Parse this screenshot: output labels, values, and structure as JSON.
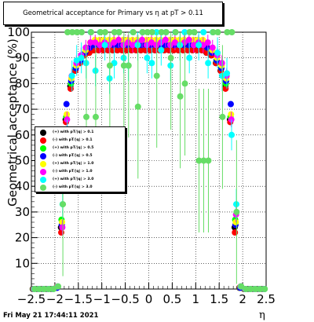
{
  "title": "Geometrical acceptance for Primary vs  η at pT > 0.11",
  "footer": "Fri May 21 17:44:11 2021",
  "chart_data": {
    "type": "scatter",
    "title": "Geometrical acceptance for Primary vs  η at pT > 0.11",
    "xlabel": "η",
    "ylabel": "Geometrical acceptance (%)",
    "xlim": [
      -2.5,
      2.5
    ],
    "ylim": [
      0,
      100
    ],
    "xticks": [
      "−2.5",
      "−2",
      "−1.5",
      "−1",
      "−0.5",
      "0",
      "0.5",
      "1",
      "1.5",
      "2",
      "2.5"
    ],
    "yticks": [
      "10",
      "20",
      "30",
      "40",
      "50",
      "60",
      "70",
      "80",
      "90",
      "100"
    ],
    "grid": true,
    "legend_position": "left-middle",
    "x": [
      -2.45,
      -2.35,
      -2.25,
      -2.15,
      -2.05,
      -1.95,
      -1.85,
      -1.75,
      -1.65,
      -1.55,
      -1.45,
      -1.35,
      -1.25,
      -1.15,
      -1.05,
      -0.95,
      -0.85,
      -0.75,
      -0.65,
      -0.55,
      -0.45,
      -0.35,
      -0.25,
      -0.15,
      -0.05,
      0.05,
      0.15,
      0.25,
      0.35,
      0.45,
      0.55,
      0.65,
      0.75,
      0.85,
      0.95,
      1.05,
      1.15,
      1.25,
      1.35,
      1.45,
      1.55,
      1.65,
      1.75,
      1.85,
      1.95,
      2.05,
      2.15,
      2.25,
      2.35,
      2.45
    ],
    "series": [
      {
        "name": "(+) with pT/|q| > 0.1",
        "color": "#000000",
        "values": [
          0,
          0,
          0,
          0,
          0,
          0,
          0,
          0,
          0,
          0,
          0,
          0,
          0,
          0,
          0,
          0,
          0,
          0,
          0,
          0,
          0,
          0,
          0,
          0,
          0,
          0,
          0,
          0,
          0,
          0,
          0,
          0,
          0,
          0,
          0,
          0,
          0,
          0,
          0,
          0,
          0,
          0,
          0,
          0,
          0,
          0,
          0,
          0,
          0,
          0
        ],
        "shown": [
          0,
          0,
          0,
          0,
          0,
          0.5,
          24,
          66,
          79,
          85,
          88,
          91,
          92,
          93,
          93,
          93,
          93,
          93,
          93,
          93,
          93,
          93,
          93,
          93,
          93,
          93,
          93,
          93,
          93,
          93,
          93,
          93,
          93,
          93,
          93,
          93,
          93,
          92,
          91,
          88,
          85,
          79,
          66,
          24,
          0.5,
          0,
          0,
          0,
          0,
          0
        ]
      },
      {
        "name": "(-) with pT/|q| > 0.1",
        "color": "#ff0000",
        "shown": [
          0,
          0,
          0,
          0,
          0,
          0.5,
          22,
          65,
          78,
          85,
          88,
          91,
          92,
          93,
          93,
          93,
          93,
          93,
          93,
          93,
          93,
          93,
          93,
          93,
          93,
          93,
          93,
          93,
          93,
          93,
          93,
          93,
          93,
          93,
          93,
          93,
          93,
          92,
          91,
          88,
          85,
          78,
          65,
          22,
          0.5,
          0,
          0,
          0,
          0,
          0
        ]
      },
      {
        "name": "(+) with pT/|q| > 0.5",
        "color": "#00ff00",
        "shown": [
          0,
          0,
          0,
          0,
          0,
          0.5,
          27,
          67,
          80,
          86,
          89,
          92,
          94,
          95,
          95,
          95,
          95,
          95,
          95,
          95,
          95,
          95,
          95,
          95,
          95,
          95,
          95,
          95,
          95,
          95,
          95,
          95,
          95,
          95,
          95,
          95,
          95,
          94,
          92,
          89,
          86,
          80,
          67,
          27,
          0.5,
          0,
          0,
          0,
          0,
          0
        ]
      },
      {
        "name": "(-) with pT/|q| > 0.5",
        "color": "#0000ff",
        "shown": [
          0,
          0,
          0,
          0,
          0,
          0.5,
          25,
          72,
          81,
          86,
          89,
          92,
          94,
          95,
          95,
          95,
          95,
          95,
          95,
          95,
          95,
          95,
          95,
          95,
          95,
          95,
          95,
          95,
          95,
          95,
          95,
          95,
          95,
          95,
          95,
          95,
          95,
          94,
          92,
          89,
          86,
          81,
          72,
          25,
          0.5,
          0,
          0,
          0,
          0,
          0
        ]
      },
      {
        "name": "(+) with pT/|q| > 1.0",
        "color": "#ffff00",
        "shown": [
          0,
          0,
          0,
          0,
          0,
          1,
          26,
          68,
          82,
          87,
          90,
          93,
          96,
          97,
          97,
          97,
          97,
          97,
          97,
          97,
          97,
          97,
          97,
          97,
          97,
          97,
          97,
          97,
          97,
          97,
          97,
          97,
          97,
          97,
          97,
          97,
          97,
          96,
          93,
          90,
          87,
          82,
          68,
          26,
          1,
          0,
          0,
          0,
          0,
          0
        ]
      },
      {
        "name": "(-) with pT/|q| > 1.0",
        "color": "#ff00ff",
        "shown": [
          0,
          0,
          0,
          0,
          0,
          1,
          24,
          66,
          83,
          88,
          91,
          94,
          96,
          96,
          95,
          96,
          95,
          96,
          97,
          95,
          96,
          95,
          96,
          97,
          95,
          96,
          95,
          96,
          97,
          95,
          96,
          95,
          96,
          97,
          95,
          96,
          95,
          96,
          94,
          91,
          88,
          83,
          66,
          29,
          1,
          0,
          0,
          0,
          0,
          0
        ]
      },
      {
        "name": "(+) with pT/|q| > 3.0",
        "color": "#00ffff",
        "shown": [
          0,
          0,
          0,
          0,
          0,
          1,
          33,
          60,
          83,
          89,
          90,
          88,
          100,
          85,
          100,
          95,
          82,
          88,
          100,
          90,
          87,
          100,
          95,
          100,
          90,
          88,
          100,
          93,
          100,
          87,
          100,
          95,
          100,
          90,
          100,
          95,
          100,
          88,
          100,
          92,
          83,
          84,
          60,
          33,
          1,
          0,
          0,
          0,
          0,
          0
        ]
      },
      {
        "name": "(-) with pT/|q| > 3.0",
        "color": "#66dd66",
        "shown": [
          0,
          0,
          0,
          0,
          0,
          1,
          33,
          100,
          100,
          100,
          100,
          67,
          100,
          67,
          100,
          100,
          87,
          100,
          100,
          87,
          87,
          100,
          71,
          100,
          100,
          100,
          83,
          100,
          100,
          90,
          100,
          75,
          80,
          100,
          100,
          50,
          50,
          50,
          100,
          100,
          67,
          100,
          100,
          30,
          1,
          0,
          0,
          0,
          0,
          0
        ]
      }
    ]
  },
  "legend": [
    {
      "label": "(+) with pT/|q| > 0.1",
      "color": "#000000"
    },
    {
      "label": "(-) with pT/|q| > 0.1",
      "color": "#ff0000"
    },
    {
      "label": "(+) with pT/|q| > 0.5",
      "color": "#00ff00"
    },
    {
      "label": "(-) with pT/|q| > 0.5",
      "color": "#0000ff"
    },
    {
      "label": "(+) with pT/|q| > 1.0",
      "color": "#ffff00"
    },
    {
      "label": "(-) with pT/|q| > 1.0",
      "color": "#ff00ff"
    },
    {
      "label": "(+) with pT/|q| > 3.0",
      "color": "#00ffff"
    },
    {
      "label": "(-) with pT/|q| > 3.0",
      "color": "#66dd66"
    }
  ]
}
